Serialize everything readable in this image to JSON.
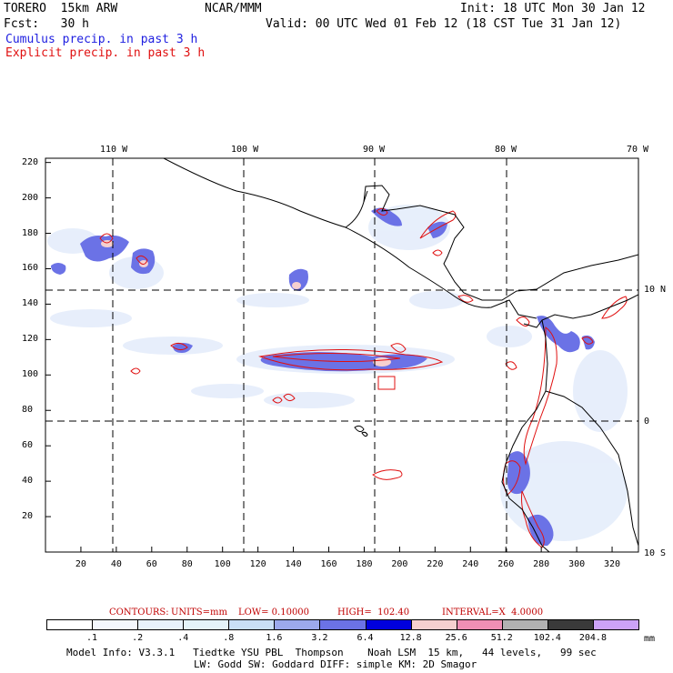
{
  "header": {
    "model": "TORERO  15km ARW",
    "org": "NCAR/MMM",
    "init": "Init: 18 UTC Mon 30 Jan 12",
    "fcst": "Fcst:   30 h",
    "valid": "Valid: 00 UTC Wed 01 Feb 12 (18 CST Tue 31 Jan 12)",
    "cumulus": "Cumulus precip. in past 3 h",
    "explicit": "Explicit precip. in past 3 h"
  },
  "colors": {
    "cumulus_text": "#1e1ee0",
    "explicit_text": "#e01010",
    "contour": "#e01010"
  },
  "map": {
    "top_lon_labels": [
      "110 W",
      "100 W",
      "90 W",
      "80 W",
      "70 W"
    ],
    "right_lat_labels": [
      "10 N",
      "0",
      "10 S"
    ],
    "x_ticks": [
      "20",
      "40",
      "60",
      "80",
      "100",
      "120",
      "140",
      "160",
      "180",
      "200",
      "220",
      "240",
      "260",
      "280",
      "300",
      "320"
    ],
    "y_ticks": [
      "220",
      "200",
      "180",
      "160",
      "140",
      "120",
      "100",
      "80",
      "60",
      "40",
      "20"
    ]
  },
  "contours_line": {
    "label": "CONTOURS:",
    "units": "UNITS=mm",
    "low": "LOW= 0.10000",
    "high": "HIGH=  102.40",
    "interval": "INTERVAL=X  4.0000"
  },
  "colorbar": {
    "colors": [
      "#ffffff",
      "#f4f7fd",
      "#e8f2fc",
      "#e4f3f9",
      "#c9dff6",
      "#9ca9ec",
      "#6b72e6",
      "#0000dd",
      "#f6d0cf",
      "#ef8fb5",
      "#b2b2b2",
      "#3a3a3a",
      "#cca2f8"
    ],
    "labels": [
      ".1",
      ".2",
      ".4",
      ".8",
      "1.6",
      "3.2",
      "6.4",
      "12.8",
      "25.6",
      "51.2",
      "102.4",
      "204.8"
    ],
    "unit": "mm"
  },
  "footer": {
    "line1": "Model Info: V3.3.1   Tiedtke YSU PBL  Thompson    Noah LSM  15 km,   44 levels,   99 sec",
    "line2": "LW: Godd SW: Goddard DIFF: simple KM: 2D Smagor"
  }
}
